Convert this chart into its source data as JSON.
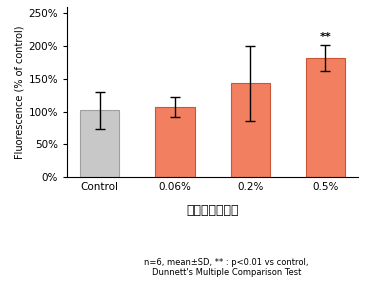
{
  "categories": [
    "Control",
    "0.06%",
    "0.2%",
    "0.5%"
  ],
  "values": [
    102,
    107,
    143,
    182
  ],
  "errors": [
    28,
    16,
    57,
    20
  ],
  "bar_colors": [
    "#c8c8c8",
    "#f28060",
    "#f28060",
    "#f28060"
  ],
  "bar_edge_colors": [
    "#a0a0a0",
    "#cc5533",
    "#cc5533",
    "#cc5533"
  ],
  "ylim": [
    0,
    260
  ],
  "yticks": [
    0,
    50,
    100,
    150,
    200,
    250
  ],
  "ytick_labels": [
    "0%",
    "50%",
    "100%",
    "150%",
    "200%",
    "250%"
  ],
  "xlabel": "ペルーバルサム",
  "ylabel": "Fluorescence (% of control)",
  "annotation": "**",
  "annotation_index": 3,
  "footnote_line1": "n=6, mean±SD, ** : p<0.01 vs control,",
  "footnote_line2": "Dunnett's Multiple Comparison Test",
  "title": ""
}
